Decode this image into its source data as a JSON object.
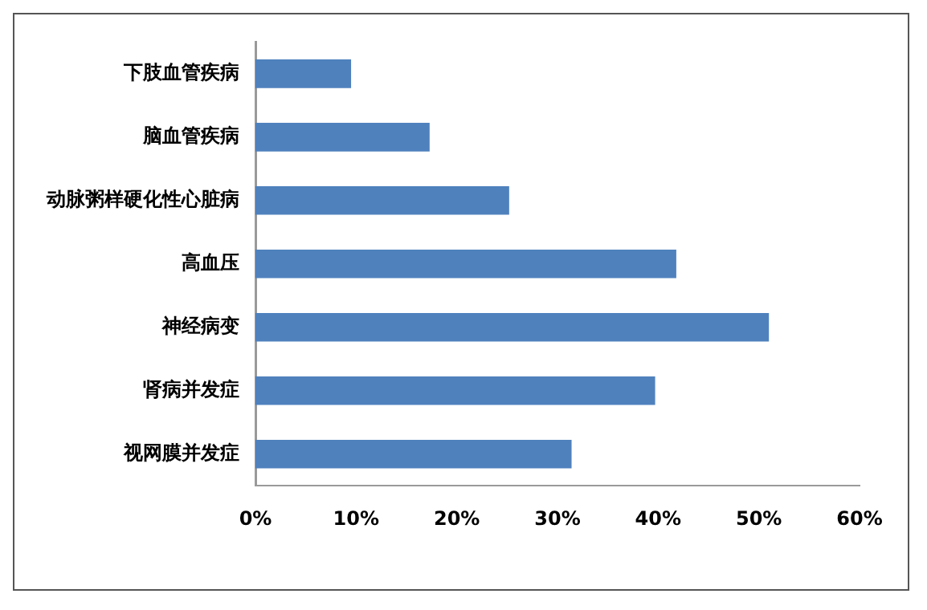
{
  "chart_data": {
    "type": "bar",
    "orientation": "horizontal",
    "categories": [
      "下肢血管疾病",
      "脑血管疾病",
      "动脉粥样硬化性心脏病",
      "高血压",
      "神经病变",
      "肾病并发症",
      "视网膜并发症"
    ],
    "values": [
      9.5,
      17.3,
      25.2,
      41.8,
      51,
      39.7,
      31.4
    ],
    "color": "#4f81bd",
    "xlim": [
      0,
      60
    ],
    "xticks": [
      {
        "value": 0,
        "label": "0%"
      },
      {
        "value": 10,
        "label": "10%"
      },
      {
        "value": 20,
        "label": "20%"
      },
      {
        "value": 30,
        "label": "30%"
      },
      {
        "value": 40,
        "label": "40%"
      },
      {
        "value": 50,
        "label": "50%"
      },
      {
        "value": 60,
        "label": "60%"
      }
    ],
    "grid": false,
    "legend": false
  }
}
